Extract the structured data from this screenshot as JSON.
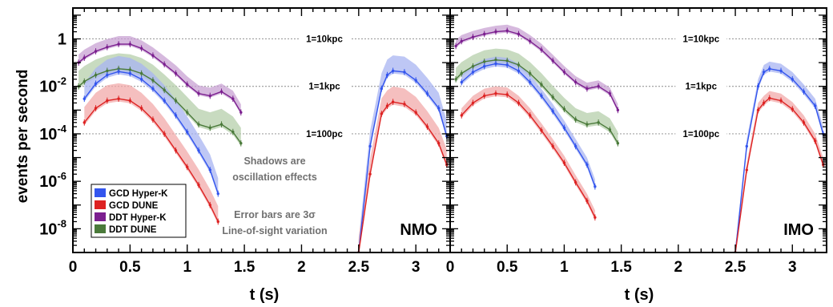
{
  "chart_data": {
    "type": "line",
    "ylabel": "events per second",
    "yscale": "log",
    "ylim": [
      1e-09,
      20
    ],
    "y_ticks": [
      {
        "value": 1,
        "label": "1"
      },
      {
        "value": 0.01,
        "label": "10",
        "exp": "-2"
      },
      {
        "value": 0.0001,
        "label": "10",
        "exp": "-4"
      },
      {
        "value": 1e-06,
        "label": "10",
        "exp": "-6"
      },
      {
        "value": 1e-08,
        "label": "10",
        "exp": "-8"
      }
    ],
    "legend": {
      "placement": "bottom-left of left panel",
      "entries": [
        {
          "label": "GCD Hyper-K",
          "color": "#3355ee"
        },
        {
          "label": "GCD DUNE",
          "color": "#dd2222"
        },
        {
          "label": "DDT Hyper-K",
          "color": "#7b1f8f"
        },
        {
          "label": "DDT DUNE",
          "color": "#4a7a3a"
        }
      ]
    },
    "reference_lines": [
      {
        "y": 1,
        "label": "1=10kpc"
      },
      {
        "y": 0.01,
        "label": "1=1kpc"
      },
      {
        "y": 0.0001,
        "label": "1=100pc"
      }
    ],
    "annotations": [
      "Shadows are",
      "oscillation effects",
      "Error bars are 3σ",
      "Line-of-sight variation"
    ],
    "panels": [
      {
        "name": "NMO",
        "xlabel": "t (s)",
        "xlim": [
          0,
          3.3
        ],
        "x_ticks": [
          0,
          0.5,
          1,
          1.5,
          2,
          2.5,
          3
        ],
        "x_tick_labels": [
          "0",
          "0.5",
          "1",
          "1.5",
          "2",
          "2.5",
          "3"
        ],
        "series": [
          {
            "key": "ddt_hk",
            "color": "#7b1f8f",
            "fill": "#c8a2d3",
            "x": [
              0.05,
              0.1,
              0.2,
              0.3,
              0.4,
              0.5,
              0.6,
              0.7,
              0.8,
              0.9,
              1.0,
              1.1,
              1.2,
              1.3,
              1.4,
              1.47
            ],
            "y": [
              0.1,
              0.16,
              0.3,
              0.45,
              0.6,
              0.6,
              0.4,
              0.2,
              0.085,
              0.035,
              0.012,
              0.005,
              0.004,
              0.006,
              0.003,
              0.0008
            ],
            "upper_factor": 2.2,
            "lower_factor": 1.2
          },
          {
            "key": "ddt_dune",
            "color": "#4a7a3a",
            "fill": "#b6cfab",
            "x": [
              0.05,
              0.1,
              0.2,
              0.3,
              0.4,
              0.5,
              0.6,
              0.7,
              0.8,
              0.9,
              1.0,
              1.1,
              1.2,
              1.3,
              1.4,
              1.47
            ],
            "y": [
              0.01,
              0.016,
              0.03,
              0.045,
              0.055,
              0.05,
              0.035,
              0.018,
              0.007,
              0.0025,
              0.0008,
              0.00025,
              0.00018,
              0.00025,
              0.00012,
              4e-05
            ],
            "upper_factor": 4.5,
            "lower_factor": 1.3
          },
          {
            "key": "gcd_hk",
            "color": "#3355ee",
            "fill": "#a8b4f2",
            "x": [
              0.1,
              0.2,
              0.3,
              0.4,
              0.5,
              0.6,
              0.7,
              0.8,
              0.9,
              1.0,
              1.1,
              1.2,
              1.27,
              2.5,
              2.6,
              2.7,
              2.75,
              2.8,
              2.9,
              3.0,
              3.1,
              3.2,
              3.27
            ],
            "y": [
              0.003,
              0.013,
              0.03,
              0.042,
              0.035,
              0.02,
              0.008,
              0.0025,
              0.0006,
              0.00012,
              2e-05,
              3e-06,
              3e-07,
              8e-10,
              3e-05,
              0.008,
              0.03,
              0.045,
              0.04,
              0.018,
              0.005,
              0.0012,
              8e-05
            ],
            "upper_factor": 4.5,
            "lower_factor": 1.3
          },
          {
            "key": "gcd_dune",
            "color": "#dd2222",
            "fill": "#f2aaaa",
            "x": [
              0.1,
              0.2,
              0.3,
              0.4,
              0.5,
              0.6,
              0.7,
              0.8,
              0.9,
              1.0,
              1.1,
              1.2,
              1.27,
              2.5,
              2.6,
              2.7,
              2.75,
              2.8,
              2.9,
              3.0,
              3.1,
              3.2,
              3.27
            ],
            "y": [
              0.0003,
              0.0012,
              0.0025,
              0.003,
              0.0025,
              0.0012,
              0.0004,
              0.0001,
              2e-05,
              4e-06,
              7e-07,
              1e-07,
              2e-08,
              1e-09,
              2e-06,
              0.0007,
              0.0015,
              0.0022,
              0.0018,
              0.0008,
              0.0002,
              4e-05,
              5e-06
            ],
            "upper_factor": 4.5,
            "lower_factor": 1.3
          }
        ]
      },
      {
        "name": "IMO",
        "xlabel": "t (s)",
        "xlim": [
          0,
          3.3
        ],
        "x_ticks": [
          0,
          0.5,
          1,
          1.5,
          2,
          2.5,
          3
        ],
        "x_tick_labels": [
          "0",
          "0.5",
          "1",
          "1.5",
          "2",
          "2.5",
          "3"
        ],
        "series": [
          {
            "key": "ddt_hk",
            "color": "#7b1f8f",
            "fill": "#c8a2d3",
            "x": [
              0.05,
              0.1,
              0.2,
              0.3,
              0.4,
              0.5,
              0.6,
              0.7,
              0.8,
              0.9,
              1.0,
              1.1,
              1.2,
              1.3,
              1.4,
              1.47
            ],
            "y": [
              0.5,
              0.8,
              1.2,
              1.6,
              2.0,
              2.2,
              1.6,
              0.8,
              0.35,
              0.12,
              0.04,
              0.015,
              0.008,
              0.01,
              0.005,
              0.001
            ],
            "upper_factor": 1.8,
            "lower_factor": 1.2
          },
          {
            "key": "ddt_dune",
            "color": "#4a7a3a",
            "fill": "#b6cfab",
            "x": [
              0.05,
              0.1,
              0.2,
              0.3,
              0.4,
              0.5,
              0.6,
              0.7,
              0.8,
              0.9,
              1.0,
              1.1,
              1.2,
              1.3,
              1.4,
              1.47
            ],
            "y": [
              0.02,
              0.035,
              0.07,
              0.11,
              0.13,
              0.12,
              0.08,
              0.035,
              0.012,
              0.0035,
              0.0011,
              0.0004,
              0.00025,
              0.0003,
              0.00015,
              4e-05
            ],
            "upper_factor": 3.0,
            "lower_factor": 1.3
          },
          {
            "key": "gcd_hk",
            "color": "#3355ee",
            "fill": "#a8b4f2",
            "x": [
              0.1,
              0.2,
              0.3,
              0.4,
              0.5,
              0.6,
              0.7,
              0.8,
              0.9,
              1.0,
              1.1,
              1.2,
              1.27,
              2.5,
              2.6,
              2.7,
              2.75,
              2.8,
              2.9,
              3.0,
              3.1,
              3.2,
              3.27
            ],
            "y": [
              0.015,
              0.04,
              0.07,
              0.09,
              0.08,
              0.045,
              0.015,
              0.004,
              0.0009,
              0.00018,
              3e-05,
              5e-06,
              6e-07,
              8e-10,
              3e-05,
              0.01,
              0.04,
              0.055,
              0.045,
              0.02,
              0.006,
              0.0015,
              0.0001
            ],
            "upper_factor": 2.0,
            "lower_factor": 1.3
          },
          {
            "key": "gcd_dune",
            "color": "#dd2222",
            "fill": "#f2aaaa",
            "x": [
              0.1,
              0.2,
              0.3,
              0.4,
              0.5,
              0.6,
              0.7,
              0.8,
              0.9,
              1.0,
              1.1,
              1.2,
              1.27,
              2.5,
              2.6,
              2.7,
              2.75,
              2.8,
              2.9,
              3.0,
              3.1,
              3.2,
              3.27
            ],
            "y": [
              0.0006,
              0.002,
              0.004,
              0.005,
              0.0045,
              0.002,
              0.0006,
              0.00014,
              3e-05,
              6e-06,
              9e-07,
              1.5e-07,
              3e-08,
              1e-09,
              3e-06,
              0.001,
              0.002,
              0.0032,
              0.0025,
              0.0011,
              0.0003,
              5e-05,
              5e-06
            ],
            "upper_factor": 2.0,
            "lower_factor": 1.3
          }
        ]
      }
    ]
  }
}
